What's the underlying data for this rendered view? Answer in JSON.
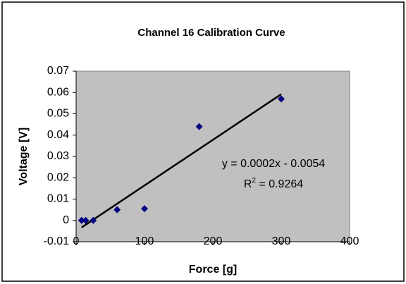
{
  "chart_data": {
    "type": "scatter",
    "title": "Channel 16 Calibration Curve",
    "x_label": "Force [g]",
    "y_label": "Voltage [V]",
    "series": [
      {
        "name": "Channel 16",
        "color": "#000080",
        "x": [
          8,
          14,
          25,
          60,
          100,
          180,
          300
        ],
        "values": [
          0,
          0,
          0,
          0.005,
          0.0055,
          0.044,
          0.057
        ]
      }
    ],
    "trendline": {
      "color": "#000000",
      "x": [
        8,
        300
      ],
      "values": [
        -0.0033,
        0.0592
      ]
    },
    "annotations": [
      "y = 0.0002x - 0.0054",
      "R",
      "2",
      " = 0.9264"
    ],
    "xlim": [
      0,
      400
    ],
    "xticks": [
      0,
      100,
      200,
      300,
      400
    ],
    "ylim": [
      -0.01,
      0.07
    ],
    "yticks": [
      -0.01,
      0,
      0.01,
      0.02,
      0.03,
      0.04,
      0.05,
      0.06,
      0.07
    ],
    "grid": false,
    "plot_background": "#c0c0c0"
  }
}
